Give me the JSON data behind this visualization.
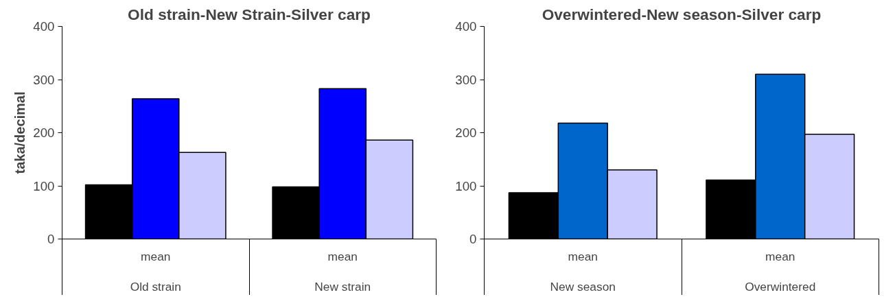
{
  "chart_data": [
    {
      "type": "bar",
      "title": "Old strain-New Strain-Silver carp",
      "ylabel": "taka/decimal",
      "categories": [
        "mean\n\nOld strain",
        "mean\n\nNew strain"
      ],
      "ylim": [
        0,
        400
      ],
      "yticks": [
        0,
        100,
        200,
        300,
        400
      ],
      "grid": false,
      "series": [
        {
          "color": "#000000",
          "values": [
            102,
            98
          ]
        },
        {
          "color": "#0000ff",
          "values": [
            264,
            283
          ]
        },
        {
          "color": "#ccccff",
          "values": [
            163,
            186
          ]
        }
      ]
    },
    {
      "type": "bar",
      "title": "Overwintered-New season-Silver carp",
      "categories": [
        "mean\n\nNew season",
        "mean\n\nOverwintered"
      ],
      "ylim": [
        0,
        400
      ],
      "yticks": [
        0,
        100,
        200,
        300,
        400
      ],
      "grid": false,
      "series": [
        {
          "color": "#000000",
          "values": [
            87,
            111
          ]
        },
        {
          "color": "#0066cc",
          "values": [
            218,
            310
          ]
        },
        {
          "color": "#ccccff",
          "values": [
            130,
            197
          ]
        }
      ]
    }
  ]
}
